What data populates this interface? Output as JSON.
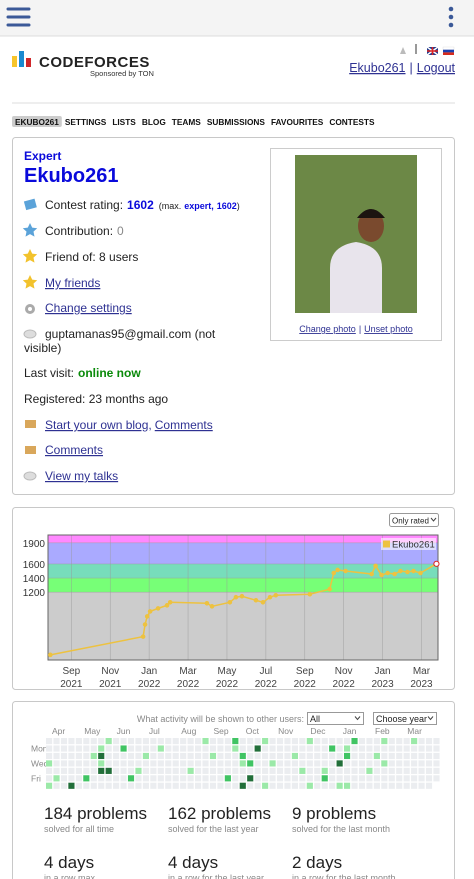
{
  "header": {
    "logo": "CODEFORCES",
    "sponsor": "Sponsored by TON",
    "user": "Ekubo261",
    "separator": "|",
    "logout": "Logout"
  },
  "nav": [
    "EKUBO261",
    "SETTINGS",
    "LISTS",
    "BLOG",
    "TEAMS",
    "SUBMISSIONS",
    "FAVOURITES",
    "CONTESTS"
  ],
  "profile": {
    "rank": "Expert",
    "handle": "Ekubo261",
    "rating_label": "Contest rating:",
    "rating": 1602,
    "max_prefix": "(max.",
    "max_rank": "expert,",
    "max_rating": 1602,
    "max_suffix": ")",
    "contribution_label": "Contribution:",
    "contribution": 0,
    "friend_of": "Friend of: 8 users",
    "my_friends": "My friends",
    "change_settings": "Change settings",
    "email": "guptamanas95@gmail.com (not",
    "email_note": "visible)",
    "last_visit_label": "Last visit:",
    "last_visit": "online now",
    "registered": "Registered: 23 months ago",
    "blog": "Start your own blog",
    "blog_sep": ",",
    "blog_comments": "Comments",
    "comments": "Comments",
    "talks": "View my talks",
    "change_photo": "Change photo",
    "photo_sep": "|",
    "unset_photo": "Unset photo"
  },
  "rating_chart": {
    "type": "line",
    "filter": "Only rated",
    "legend": "Ekubo261",
    "color": "#edc240",
    "ylim": [
      240,
      2010
    ],
    "yticks": [
      1200,
      1400,
      1600,
      1900
    ],
    "bands": [
      {
        "from": 240,
        "to": 1200,
        "color": "#cccccc"
      },
      {
        "from": 1200,
        "to": 1400,
        "color": "#77ff77"
      },
      {
        "from": 1400,
        "to": 1600,
        "color": "#77ddbb"
      },
      {
        "from": 1600,
        "to": 1900,
        "color": "#aaaaff"
      },
      {
        "from": 1900,
        "to": 2010,
        "color": "#ff88ff"
      }
    ],
    "xlim": [
      -1.2,
      18.85
    ],
    "xticks": [
      {
        "value": 0,
        "month": "Sep",
        "year": "2021"
      },
      {
        "value": 2,
        "month": "Nov",
        "year": "2021"
      },
      {
        "value": 4,
        "month": "Jan",
        "year": "2022"
      },
      {
        "value": 6,
        "month": "Mar",
        "year": "2022"
      },
      {
        "value": 8,
        "month": "May",
        "year": "2022"
      },
      {
        "value": 10,
        "month": "Jul",
        "year": "2022"
      },
      {
        "value": 12,
        "month": "Sep",
        "year": "2022"
      },
      {
        "value": 14,
        "month": "Nov",
        "year": "2022"
      },
      {
        "value": 16,
        "month": "Jan",
        "year": "2023"
      },
      {
        "value": 18,
        "month": "Mar",
        "year": "2023"
      }
    ],
    "points": {
      "x": [
        -1.08,
        3.69,
        3.79,
        3.9,
        4.05,
        4.46,
        4.92,
        5.08,
        6.97,
        7.23,
        8.15,
        8.46,
        8.77,
        9.49,
        9.85,
        10.21,
        10.51,
        12.26,
        13.28,
        13.49,
        13.69,
        14.1,
        15.44,
        15.64,
        15.95,
        16.26,
        16.62,
        16.92,
        17.28,
        17.59,
        17.95,
        18.77
      ],
      "y": [
        313,
        571,
        742,
        857,
        928,
        971,
        1014,
        1057,
        1043,
        1000,
        1057,
        1129,
        1143,
        1086,
        1057,
        1129,
        1157,
        1171,
        1243,
        1472,
        1515,
        1500,
        1457,
        1572,
        1443,
        1472,
        1457,
        1500,
        1486,
        1500,
        1472,
        1602
      ]
    }
  },
  "activity": {
    "question": "What activity will be shown to other users:",
    "option": "All",
    "year": "Choose year",
    "months": [
      "Apr",
      "May",
      "Jun",
      "Jul",
      "Aug",
      "Sep",
      "Oct",
      "Nov",
      "Dec",
      "Jan",
      "Feb",
      "Mar"
    ],
    "days": [
      "Mon",
      "Wed",
      "Fri"
    ],
    "colors": [
      "#ebedf0",
      "#9be9a8",
      "#40c463",
      "#216e39"
    ],
    "grid": [
      [
        0,
        0,
        0,
        0,
        0,
        0,
        0,
        0,
        1,
        0,
        0,
        0,
        0,
        0,
        0,
        0,
        0,
        0,
        0,
        0,
        0,
        1,
        0,
        0,
        0,
        2,
        0,
        0,
        0,
        1,
        0,
        0,
        0,
        0,
        0,
        1,
        0,
        0,
        0,
        0,
        0,
        2,
        0,
        0,
        0,
        1,
        0,
        0,
        0,
        1,
        0,
        0,
        0
      ],
      [
        0,
        0,
        0,
        0,
        0,
        0,
        0,
        1,
        0,
        0,
        2,
        0,
        0,
        0,
        0,
        1,
        0,
        0,
        0,
        0,
        0,
        0,
        0,
        0,
        0,
        1,
        0,
        0,
        3,
        0,
        0,
        0,
        0,
        0,
        0,
        0,
        0,
        0,
        2,
        0,
        1,
        0,
        0,
        0,
        0,
        0,
        0,
        0,
        0,
        0,
        0,
        0,
        0
      ],
      [
        0,
        0,
        0,
        0,
        0,
        0,
        1,
        3,
        0,
        0,
        0,
        0,
        0,
        1,
        0,
        0,
        0,
        0,
        0,
        0,
        0,
        0,
        1,
        0,
        0,
        0,
        2,
        0,
        0,
        0,
        0,
        0,
        0,
        1,
        0,
        0,
        0,
        0,
        0,
        0,
        2,
        0,
        0,
        0,
        1,
        0,
        0,
        0,
        0,
        0,
        0,
        0,
        0
      ],
      [
        1,
        0,
        0,
        0,
        0,
        0,
        0,
        1,
        0,
        0,
        0,
        0,
        0,
        0,
        0,
        0,
        0,
        0,
        0,
        0,
        0,
        0,
        0,
        0,
        0,
        0,
        1,
        2,
        0,
        0,
        1,
        0,
        0,
        0,
        0,
        0,
        0,
        0,
        0,
        3,
        0,
        0,
        0,
        0,
        0,
        1,
        0,
        0,
        0,
        0,
        0,
        0,
        0
      ],
      [
        0,
        0,
        0,
        0,
        0,
        0,
        0,
        3,
        3,
        0,
        0,
        0,
        1,
        0,
        0,
        0,
        0,
        0,
        0,
        1,
        0,
        0,
        0,
        0,
        0,
        0,
        0,
        0,
        0,
        0,
        0,
        0,
        0,
        0,
        1,
        0,
        0,
        1,
        0,
        0,
        0,
        0,
        0,
        1,
        0,
        0,
        0,
        0,
        0,
        0,
        0,
        0,
        0
      ],
      [
        0,
        1,
        0,
        0,
        0,
        2,
        0,
        0,
        0,
        0,
        0,
        2,
        0,
        0,
        0,
        0,
        0,
        0,
        0,
        0,
        0,
        0,
        0,
        0,
        2,
        0,
        0,
        3,
        0,
        0,
        0,
        0,
        0,
        0,
        0,
        0,
        0,
        2,
        0,
        0,
        0,
        0,
        0,
        0,
        0,
        0,
        0,
        0,
        0,
        0,
        0,
        0,
        0
      ],
      [
        1,
        0,
        0,
        3,
        0,
        0,
        0,
        0,
        0,
        0,
        0,
        0,
        0,
        0,
        0,
        0,
        0,
        0,
        0,
        0,
        0,
        0,
        0,
        0,
        0,
        0,
        3,
        0,
        0,
        1,
        0,
        0,
        0,
        0,
        0,
        1,
        0,
        0,
        0,
        1,
        1,
        0,
        0,
        0,
        0,
        0,
        0,
        0,
        0,
        0,
        0,
        0
      ]
    ],
    "stats": [
      {
        "count": "184 problems",
        "caption": "solved for all time"
      },
      {
        "count": "162 problems",
        "caption": "solved for the last year"
      },
      {
        "count": "9 problems",
        "caption": "solved for the last month"
      },
      {
        "count": "4 days",
        "caption": "in a row max."
      },
      {
        "count": "4 days",
        "caption": "in a row for the last year"
      },
      {
        "count": "2 days",
        "caption": "in a row for the last month"
      }
    ]
  }
}
